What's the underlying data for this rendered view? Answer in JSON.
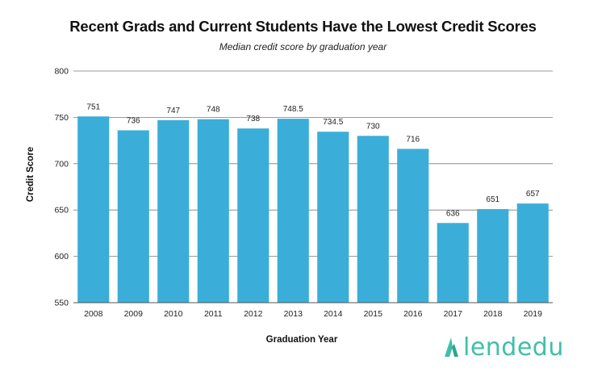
{
  "chart_data": {
    "type": "bar",
    "title": "Recent Grads and Current Students Have the Lowest Credit Scores",
    "subtitle": "Median credit score by graduation year",
    "xlabel": "Graduation Year",
    "ylabel": "Credit Score",
    "ylim": [
      550,
      800
    ],
    "yticks": [
      550,
      600,
      650,
      700,
      750,
      800
    ],
    "grid": true,
    "bar_color": "#3aaed8",
    "categories": [
      "2008",
      "2009",
      "2010",
      "2011",
      "2012",
      "2013",
      "2014",
      "2015",
      "2016",
      "2017",
      "2018",
      "2019"
    ],
    "values": [
      751,
      736,
      747,
      748,
      738,
      748.5,
      734.5,
      730,
      716,
      636,
      651,
      657
    ],
    "data_labels": [
      "751",
      "736",
      "747",
      "748",
      "738",
      "748.5",
      "734.5",
      "730",
      "716",
      "636",
      "651",
      "657"
    ]
  },
  "branding": {
    "logo_text": "lendedu",
    "logo_color": "#3fbfa9",
    "logo_icon": "lendedu-logo-icon"
  }
}
